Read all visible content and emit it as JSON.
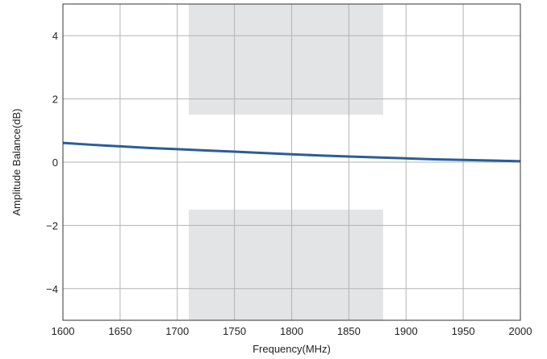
{
  "chart_data": {
    "type": "line",
    "title": "",
    "xlabel": "Frequency(MHz)",
    "ylabel": "Amplitude Balance(dB)",
    "xlim": [
      1600,
      2000
    ],
    "ylim": [
      -5,
      5
    ],
    "x_ticks": [
      1600,
      1650,
      1700,
      1750,
      1800,
      1850,
      1900,
      1950,
      2000
    ],
    "x_tick_labels": [
      "1600",
      "1650",
      "1700",
      "1750",
      "1800",
      "1850",
      "1900",
      "1950",
      "2000"
    ],
    "y_ticks": [
      -4,
      -2,
      0,
      2,
      4
    ],
    "y_tick_labels": [
      "−4",
      "−2",
      "0",
      "2",
      "4"
    ],
    "grid": true,
    "shaded_regions": [
      {
        "x": [
          1710,
          1880
        ],
        "y": [
          1.5,
          5
        ]
      },
      {
        "x": [
          1710,
          1880
        ],
        "y": [
          -5,
          -1.5
        ]
      }
    ],
    "series": [
      {
        "color": "#2a5d97",
        "x": [
          1600,
          1625,
          1650,
          1675,
          1700,
          1725,
          1750,
          1775,
          1800,
          1825,
          1850,
          1875,
          1900,
          1925,
          1950,
          1975,
          2000
        ],
        "y": [
          0.61,
          0.55,
          0.5,
          0.45,
          0.41,
          0.37,
          0.33,
          0.29,
          0.25,
          0.21,
          0.18,
          0.15,
          0.12,
          0.09,
          0.07,
          0.05,
          0.03
        ]
      }
    ],
    "colors": {
      "grid": "#b3b3b3",
      "shade": "#e3e4e6",
      "frame": "#333333"
    }
  }
}
